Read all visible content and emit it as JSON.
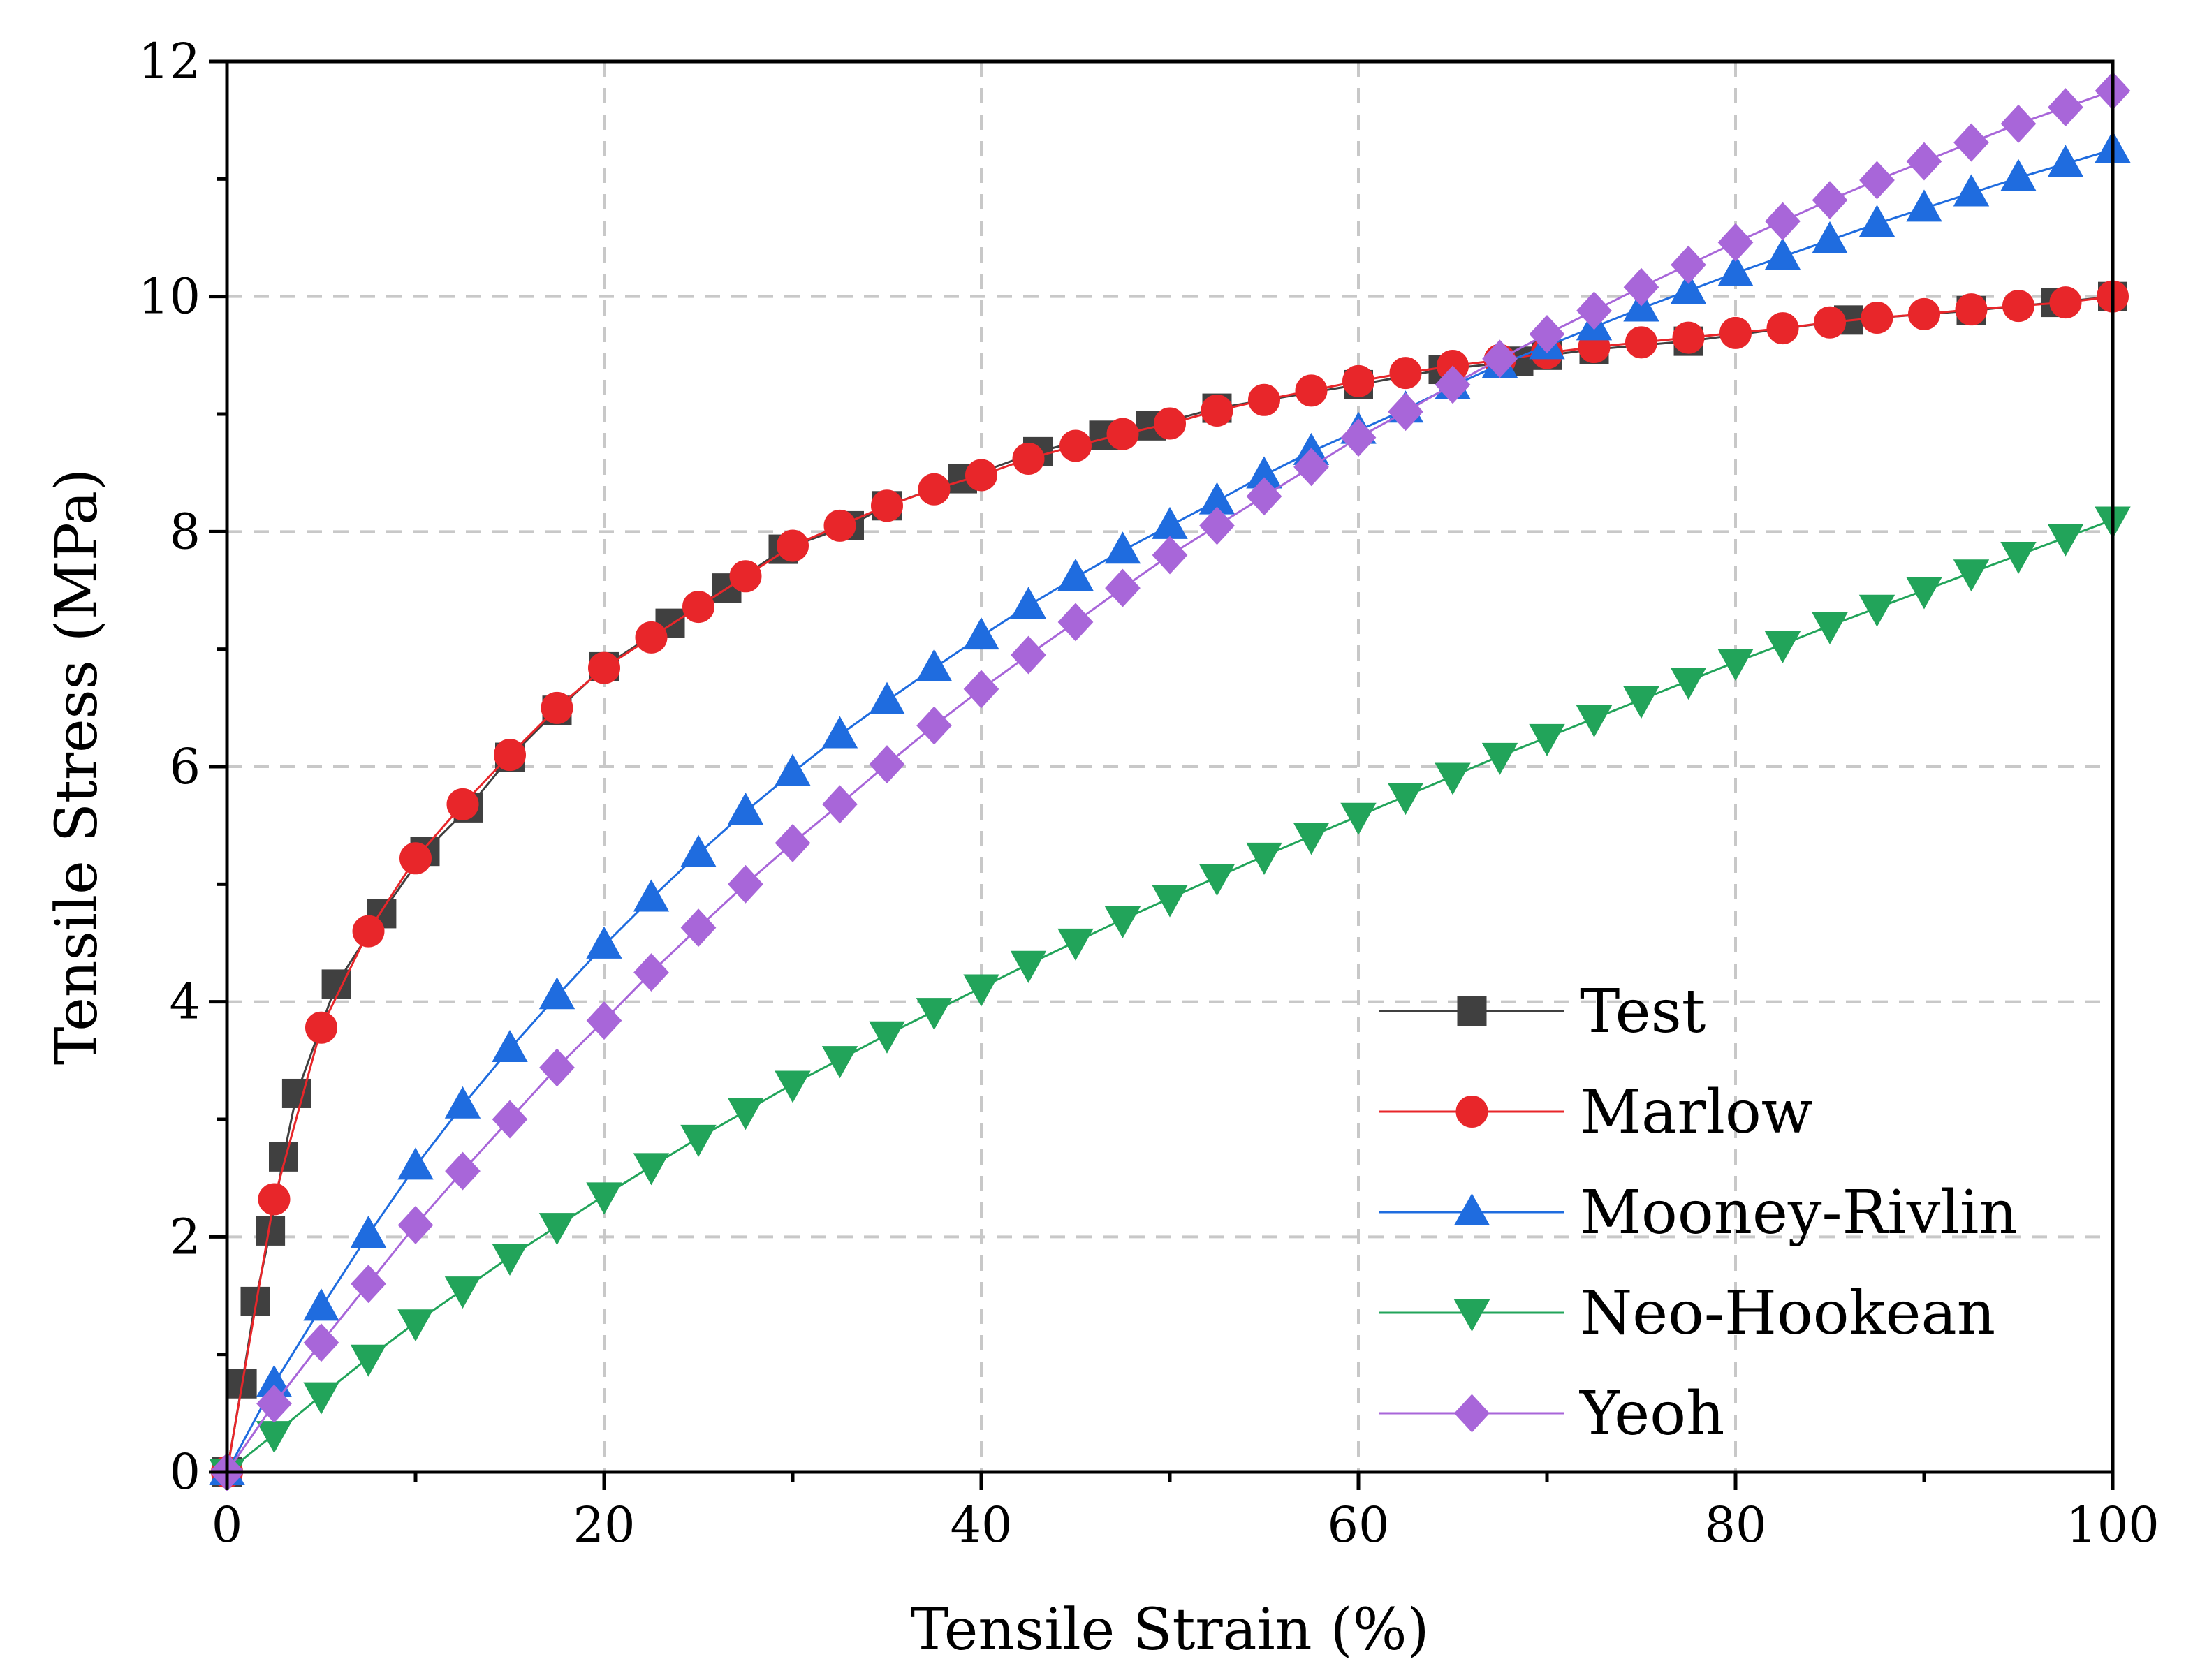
{
  "chart_data": {
    "type": "line",
    "title": "",
    "xlabel": "Tensile Strain (%)",
    "ylabel": "Tensile Stress (MPa)",
    "xlim": [
      0,
      100
    ],
    "ylim": [
      0,
      12
    ],
    "xticks": [
      0,
      20,
      40,
      60,
      80,
      100
    ],
    "yticks": [
      0,
      2,
      4,
      6,
      8,
      10,
      12
    ],
    "grid": true,
    "legend_position": "bottom-right",
    "series": [
      {
        "name": "Test",
        "color": "#404040",
        "marker": "square",
        "x": [
          0,
          0.8,
          1.5,
          2.3,
          3.0,
          3.7,
          5.8,
          8.2,
          10.5,
          12.8,
          15.0,
          17.5,
          20.0,
          23.5,
          26.5,
          29.5,
          33.0,
          35.0,
          39.0,
          43.0,
          46.5,
          49.0,
          52.5,
          60.0,
          64.5,
          68.5,
          70.0,
          72.5,
          77.5,
          86.0,
          92.5,
          97.0,
          100.0
        ],
        "y": [
          0,
          0.75,
          1.45,
          2.05,
          2.68,
          3.22,
          4.15,
          4.75,
          5.28,
          5.65,
          6.08,
          6.48,
          6.85,
          7.22,
          7.52,
          7.85,
          8.05,
          8.22,
          8.45,
          8.68,
          8.82,
          8.9,
          9.05,
          9.25,
          9.38,
          9.45,
          9.5,
          9.55,
          9.62,
          9.8,
          9.88,
          9.95,
          10.0
        ]
      },
      {
        "name": "Marlow",
        "color": "#e8262a",
        "marker": "circle",
        "x": [
          0,
          2.5,
          5.0,
          7.5,
          10.0,
          12.5,
          15.0,
          17.5,
          20.0,
          22.5,
          25.0,
          27.5,
          30.0,
          32.5,
          35.0,
          37.5,
          40.0,
          42.5,
          45.0,
          47.5,
          50.0,
          52.5,
          55.0,
          57.5,
          60.0,
          62.5,
          65.0,
          67.5,
          70.0,
          72.5,
          75.0,
          77.5,
          80.0,
          82.5,
          85.0,
          87.5,
          90.0,
          92.5,
          95.0,
          97.5,
          100.0
        ],
        "y": [
          0,
          2.32,
          3.78,
          4.6,
          5.22,
          5.68,
          6.1,
          6.5,
          6.84,
          7.1,
          7.36,
          7.62,
          7.88,
          8.05,
          8.22,
          8.36,
          8.48,
          8.62,
          8.73,
          8.83,
          8.92,
          9.03,
          9.12,
          9.2,
          9.28,
          9.35,
          9.41,
          9.46,
          9.52,
          9.57,
          9.61,
          9.65,
          9.69,
          9.73,
          9.78,
          9.82,
          9.85,
          9.89,
          9.92,
          9.95,
          10.0
        ]
      },
      {
        "name": "Mooney-Rivlin",
        "color": "#1f6cdf",
        "marker": "triangle-up",
        "x": [
          0,
          2.5,
          5.0,
          7.5,
          10.0,
          12.5,
          15.0,
          17.5,
          20.0,
          22.5,
          25.0,
          27.5,
          30.0,
          32.5,
          35.0,
          37.5,
          40.0,
          42.5,
          45.0,
          47.5,
          50.0,
          52.5,
          55.0,
          57.5,
          60.0,
          62.5,
          65.0,
          67.5,
          70.0,
          72.5,
          75.0,
          77.5,
          80.0,
          82.5,
          85.0,
          87.5,
          90.0,
          92.5,
          95.0,
          97.5,
          100.0
        ],
        "y": [
          0,
          0.75,
          1.4,
          2.02,
          2.6,
          3.12,
          3.6,
          4.05,
          4.48,
          4.88,
          5.26,
          5.62,
          5.95,
          6.27,
          6.56,
          6.84,
          7.11,
          7.37,
          7.61,
          7.84,
          8.05,
          8.26,
          8.48,
          8.68,
          8.86,
          9.04,
          9.24,
          9.42,
          9.58,
          9.74,
          9.9,
          10.05,
          10.2,
          10.34,
          10.48,
          10.62,
          10.75,
          10.88,
          11.01,
          11.13,
          11.25
        ]
      },
      {
        "name": "Neo-Hookean",
        "color": "#22a45a",
        "marker": "triangle-down",
        "x": [
          0,
          2.5,
          5.0,
          7.5,
          10.0,
          12.5,
          15.0,
          17.5,
          20.0,
          22.5,
          25.0,
          27.5,
          30.0,
          32.5,
          35.0,
          37.5,
          40.0,
          42.5,
          45.0,
          47.5,
          50.0,
          52.5,
          55.0,
          57.5,
          60.0,
          62.5,
          65.0,
          67.5,
          70.0,
          72.5,
          75.0,
          77.5,
          80.0,
          82.5,
          85.0,
          87.5,
          90.0,
          92.5,
          95.0,
          97.5,
          100.0
        ],
        "y": [
          0,
          0.32,
          0.65,
          0.97,
          1.27,
          1.55,
          1.83,
          2.09,
          2.35,
          2.6,
          2.84,
          3.07,
          3.3,
          3.51,
          3.72,
          3.92,
          4.12,
          4.32,
          4.51,
          4.7,
          4.88,
          5.06,
          5.24,
          5.41,
          5.58,
          5.75,
          5.92,
          6.09,
          6.25,
          6.41,
          6.57,
          6.73,
          6.89,
          7.04,
          7.2,
          7.35,
          7.5,
          7.65,
          7.8,
          7.95,
          8.1
        ]
      },
      {
        "name": "Yeoh",
        "color": "#a866d9",
        "marker": "diamond",
        "x": [
          0,
          2.5,
          5.0,
          7.5,
          10.0,
          12.5,
          15.0,
          17.5,
          20.0,
          22.5,
          25.0,
          27.5,
          30.0,
          32.5,
          35.0,
          37.5,
          40.0,
          42.5,
          45.0,
          47.5,
          50.0,
          52.5,
          55.0,
          57.5,
          60.0,
          62.5,
          65.0,
          67.5,
          70.0,
          72.5,
          75.0,
          77.5,
          80.0,
          82.5,
          85.0,
          87.5,
          90.0,
          92.5,
          95.0,
          97.5,
          100.0
        ],
        "y": [
          0,
          0.58,
          1.1,
          1.6,
          2.1,
          2.56,
          3.0,
          3.44,
          3.84,
          4.25,
          4.63,
          5.0,
          5.35,
          5.68,
          6.02,
          6.35,
          6.66,
          6.95,
          7.23,
          7.52,
          7.8,
          8.05,
          8.3,
          8.55,
          8.8,
          9.02,
          9.25,
          9.47,
          9.68,
          9.88,
          10.08,
          10.27,
          10.46,
          10.64,
          10.82,
          10.99,
          11.15,
          11.31,
          11.47,
          11.61,
          11.75
        ]
      }
    ]
  }
}
